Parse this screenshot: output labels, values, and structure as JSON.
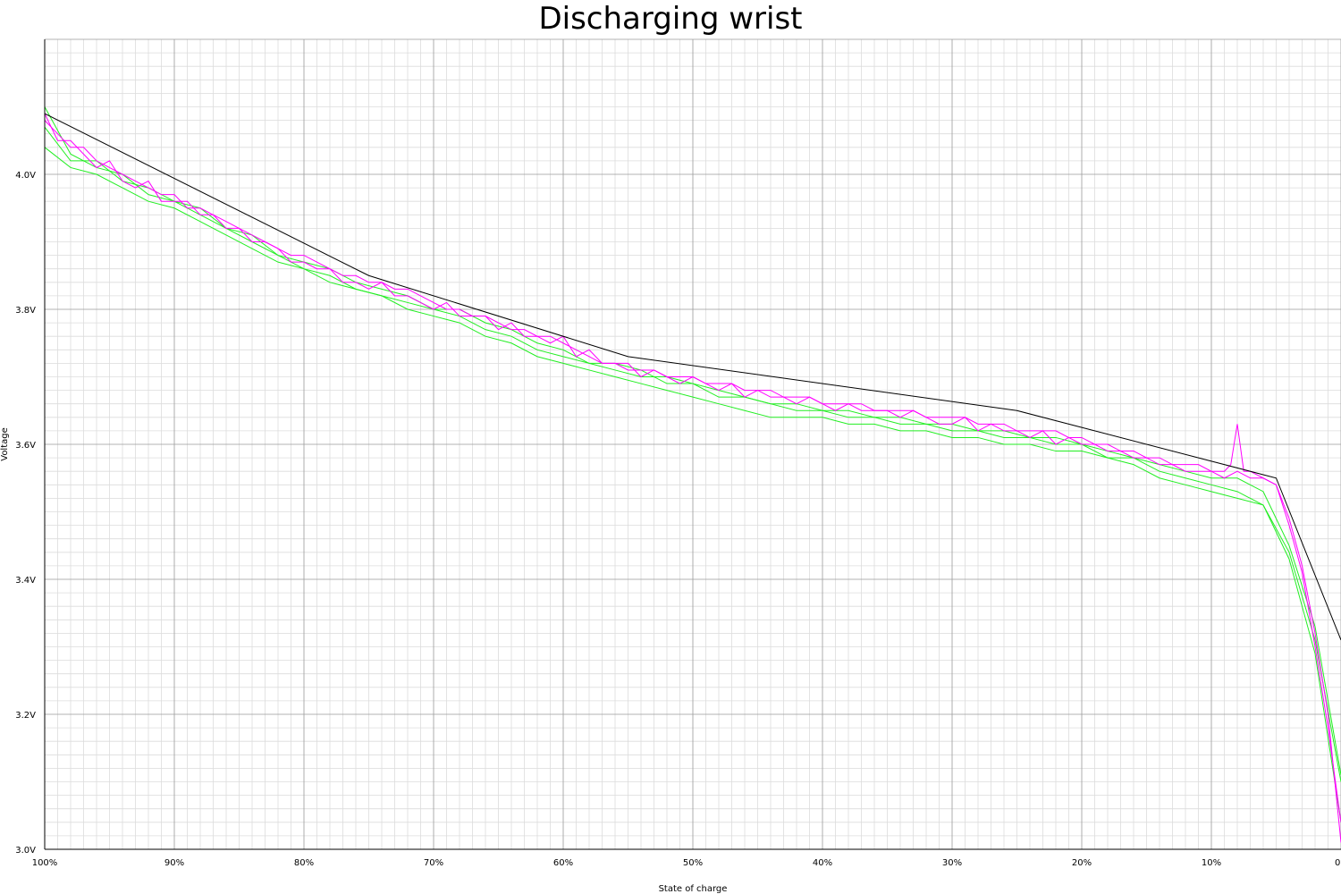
{
  "chart_data": {
    "type": "line",
    "title": "Discharging wrist",
    "xlabel": "State of charge",
    "ylabel": "Voltage",
    "x_unit": "percent state of charge (axis reversed: 100% at left, 0% at right)",
    "xlim": [
      100,
      0
    ],
    "ylim": [
      3.0,
      4.2
    ],
    "grid": true,
    "x_ticks": [
      {
        "value": 100,
        "label": "100%"
      },
      {
        "value": 90,
        "label": "90%"
      },
      {
        "value": 80,
        "label": "80%"
      },
      {
        "value": 70,
        "label": "70%"
      },
      {
        "value": 60,
        "label": "60%"
      },
      {
        "value": 50,
        "label": "50%"
      },
      {
        "value": 40,
        "label": "40%"
      },
      {
        "value": 30,
        "label": "30%"
      },
      {
        "value": 20,
        "label": "20%"
      },
      {
        "value": 10,
        "label": "10%"
      },
      {
        "value": 0,
        "label": "0%"
      }
    ],
    "y_ticks": [
      {
        "value": 3.0,
        "label": "3.0V"
      },
      {
        "value": 3.2,
        "label": "3.2V"
      },
      {
        "value": 3.4,
        "label": "3.4V"
      },
      {
        "value": 3.6,
        "label": "3.6V"
      },
      {
        "value": 3.8,
        "label": "3.8V"
      },
      {
        "value": 4.0,
        "label": "4.0V"
      }
    ],
    "series": [
      {
        "color": "#000000",
        "x": [
          100,
          75,
          55,
          25,
          5,
          0
        ],
        "y": [
          4.09,
          3.85,
          3.73,
          3.65,
          3.55,
          3.31
        ]
      },
      {
        "color": "#ff00ff",
        "x": [
          100,
          99,
          98,
          97,
          96,
          95,
          94,
          93,
          92,
          91,
          90,
          89,
          88,
          87,
          86,
          85,
          84,
          83,
          82,
          81,
          80,
          79,
          78,
          77,
          76,
          75,
          74,
          73,
          72,
          71,
          70,
          69,
          68,
          67,
          66,
          65,
          64,
          63,
          62,
          61,
          60,
          59,
          58,
          57,
          56,
          55,
          54,
          53,
          52,
          51,
          50,
          49,
          48,
          47,
          46,
          45,
          44,
          43,
          42,
          41,
          40,
          39,
          38,
          37,
          36,
          35,
          34,
          33,
          32,
          31,
          30,
          29,
          28,
          27,
          26,
          25,
          24,
          23,
          22,
          21,
          20,
          19,
          18,
          17,
          16,
          15,
          14,
          13,
          12,
          11,
          10,
          9,
          8.5,
          8,
          7.5,
          7,
          6,
          5,
          4,
          3,
          2,
          1,
          0
        ],
        "y": [
          4.08,
          4.06,
          4.04,
          4.04,
          4.02,
          4.01,
          4.0,
          3.99,
          3.98,
          3.97,
          3.97,
          3.95,
          3.95,
          3.94,
          3.93,
          3.92,
          3.91,
          3.9,
          3.89,
          3.88,
          3.88,
          3.87,
          3.86,
          3.85,
          3.85,
          3.84,
          3.84,
          3.83,
          3.83,
          3.82,
          3.81,
          3.8,
          3.8,
          3.79,
          3.79,
          3.78,
          3.77,
          3.77,
          3.76,
          3.76,
          3.75,
          3.74,
          3.73,
          3.72,
          3.72,
          3.71,
          3.71,
          3.71,
          3.7,
          3.7,
          3.7,
          3.69,
          3.69,
          3.69,
          3.68,
          3.68,
          3.68,
          3.67,
          3.67,
          3.67,
          3.66,
          3.66,
          3.66,
          3.66,
          3.65,
          3.65,
          3.65,
          3.65,
          3.64,
          3.64,
          3.64,
          3.64,
          3.63,
          3.63,
          3.63,
          3.62,
          3.62,
          3.62,
          3.62,
          3.61,
          3.61,
          3.6,
          3.6,
          3.59,
          3.59,
          3.58,
          3.58,
          3.57,
          3.57,
          3.57,
          3.56,
          3.56,
          3.57,
          3.63,
          3.56,
          3.56,
          3.55,
          3.54,
          3.49,
          3.42,
          3.32,
          3.2,
          3.01
        ]
      },
      {
        "color": "#ff00ff",
        "x": [
          100,
          99,
          98,
          97,
          96,
          95,
          94,
          93,
          92,
          91,
          90,
          89,
          88,
          87,
          86,
          85,
          84,
          83,
          82,
          81,
          80,
          79,
          78,
          77,
          76,
          75,
          74,
          73,
          72,
          71,
          70,
          69,
          68,
          67,
          66,
          65,
          64,
          63,
          62,
          61,
          60,
          59,
          58,
          57,
          56,
          55,
          54,
          53,
          52,
          51,
          50,
          49,
          48,
          47,
          46,
          45,
          44,
          43,
          42,
          41,
          40,
          39,
          38,
          37,
          36,
          35,
          34,
          33,
          32,
          31,
          30,
          29,
          28,
          27,
          26,
          25,
          24,
          23,
          22,
          21,
          20,
          19,
          18,
          17,
          16,
          15,
          14,
          13,
          12,
          11,
          10,
          9,
          8,
          7,
          6,
          5,
          4,
          3,
          2,
          1,
          0
        ],
        "y": [
          4.09,
          4.05,
          4.05,
          4.03,
          4.01,
          4.02,
          3.99,
          3.98,
          3.99,
          3.96,
          3.96,
          3.96,
          3.94,
          3.94,
          3.92,
          3.92,
          3.9,
          3.9,
          3.89,
          3.87,
          3.87,
          3.86,
          3.86,
          3.84,
          3.84,
          3.83,
          3.84,
          3.82,
          3.82,
          3.81,
          3.8,
          3.81,
          3.79,
          3.79,
          3.79,
          3.77,
          3.78,
          3.76,
          3.76,
          3.75,
          3.76,
          3.73,
          3.74,
          3.72,
          3.72,
          3.72,
          3.7,
          3.71,
          3.7,
          3.69,
          3.7,
          3.69,
          3.68,
          3.69,
          3.67,
          3.68,
          3.67,
          3.67,
          3.66,
          3.67,
          3.66,
          3.65,
          3.66,
          3.65,
          3.65,
          3.65,
          3.64,
          3.65,
          3.64,
          3.63,
          3.63,
          3.64,
          3.62,
          3.63,
          3.62,
          3.62,
          3.61,
          3.62,
          3.6,
          3.61,
          3.6,
          3.6,
          3.59,
          3.59,
          3.58,
          3.58,
          3.57,
          3.57,
          3.56,
          3.56,
          3.56,
          3.55,
          3.56,
          3.55,
          3.55,
          3.54,
          3.48,
          3.41,
          3.3,
          3.18,
          3.04
        ]
      },
      {
        "color": "#22ee22",
        "x": [
          100,
          98,
          96,
          94,
          92,
          90,
          88,
          86,
          84,
          82,
          80,
          78,
          76,
          74,
          72,
          70,
          68,
          66,
          64,
          62,
          60,
          58,
          56,
          54,
          52,
          50,
          48,
          46,
          44,
          42,
          40,
          38,
          36,
          34,
          32,
          30,
          28,
          26,
          24,
          22,
          20,
          18,
          16,
          14,
          12,
          10,
          8,
          6,
          4,
          2,
          0
        ],
        "y": [
          4.1,
          4.03,
          4.01,
          4.0,
          3.97,
          3.96,
          3.94,
          3.92,
          3.9,
          3.88,
          3.86,
          3.85,
          3.83,
          3.82,
          3.81,
          3.8,
          3.79,
          3.77,
          3.76,
          3.74,
          3.73,
          3.72,
          3.71,
          3.7,
          3.7,
          3.69,
          3.68,
          3.67,
          3.66,
          3.66,
          3.65,
          3.65,
          3.64,
          3.64,
          3.63,
          3.63,
          3.62,
          3.62,
          3.61,
          3.61,
          3.6,
          3.59,
          3.58,
          3.57,
          3.56,
          3.55,
          3.55,
          3.53,
          3.45,
          3.33,
          3.11
        ]
      },
      {
        "color": "#22ee22",
        "x": [
          100,
          98,
          96,
          94,
          92,
          90,
          88,
          86,
          84,
          82,
          80,
          78,
          76,
          74,
          72,
          70,
          68,
          66,
          64,
          62,
          60,
          58,
          56,
          54,
          52,
          50,
          48,
          46,
          44,
          42,
          40,
          38,
          36,
          34,
          32,
          30,
          28,
          26,
          24,
          22,
          20,
          18,
          16,
          14,
          12,
          10,
          8,
          6,
          4,
          2,
          0
        ],
        "y": [
          4.04,
          4.01,
          4.0,
          3.98,
          3.96,
          3.95,
          3.93,
          3.91,
          3.89,
          3.87,
          3.86,
          3.84,
          3.83,
          3.82,
          3.8,
          3.79,
          3.78,
          3.76,
          3.75,
          3.73,
          3.72,
          3.71,
          3.7,
          3.69,
          3.68,
          3.67,
          3.66,
          3.65,
          3.64,
          3.64,
          3.64,
          3.63,
          3.63,
          3.62,
          3.62,
          3.61,
          3.61,
          3.6,
          3.6,
          3.59,
          3.59,
          3.58,
          3.57,
          3.55,
          3.54,
          3.53,
          3.52,
          3.51,
          3.43,
          3.29,
          3.04
        ]
      },
      {
        "color": "#22ee22",
        "x": [
          100,
          98,
          96,
          94,
          92,
          90,
          88,
          86,
          84,
          82,
          80,
          78,
          76,
          74,
          72,
          70,
          68,
          66,
          64,
          62,
          60,
          58,
          56,
          54,
          52,
          50,
          48,
          46,
          44,
          42,
          40,
          38,
          36,
          34,
          32,
          30,
          28,
          26,
          24,
          22,
          20,
          18,
          16,
          14,
          12,
          10,
          8,
          6,
          4,
          2,
          0
        ],
        "y": [
          4.07,
          4.02,
          4.02,
          3.99,
          3.98,
          3.96,
          3.95,
          3.92,
          3.91,
          3.88,
          3.87,
          3.86,
          3.84,
          3.83,
          3.82,
          3.8,
          3.8,
          3.78,
          3.77,
          3.75,
          3.74,
          3.72,
          3.72,
          3.71,
          3.69,
          3.69,
          3.67,
          3.67,
          3.66,
          3.65,
          3.65,
          3.64,
          3.64,
          3.63,
          3.63,
          3.62,
          3.62,
          3.61,
          3.61,
          3.6,
          3.6,
          3.58,
          3.58,
          3.56,
          3.55,
          3.54,
          3.53,
          3.51,
          3.44,
          3.31,
          3.1
        ]
      }
    ]
  }
}
